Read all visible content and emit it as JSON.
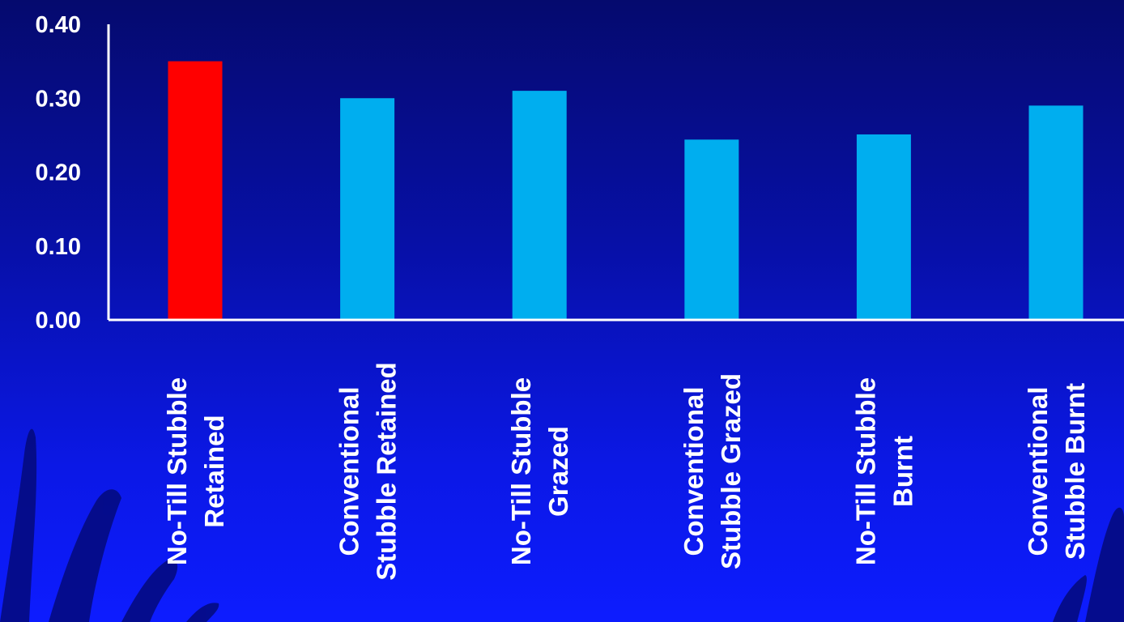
{
  "chart_data": {
    "type": "bar",
    "categories": [
      [
        "No-Till Stubble",
        "Retained"
      ],
      [
        "Conventional",
        "Stubble Retained"
      ],
      [
        "No-Till Stubble",
        "Grazed"
      ],
      [
        "Conventional",
        "Stubble Grazed"
      ],
      [
        "No-Till Stubble",
        "Burnt"
      ],
      [
        "Conventional",
        "Stubble Burnt"
      ]
    ],
    "values": [
      0.35,
      0.3,
      0.31,
      0.244,
      0.251,
      0.29
    ],
    "bar_colors": [
      "#ff0000",
      "#00aeef",
      "#00aeef",
      "#00aeef",
      "#00aeef",
      "#00aeef"
    ],
    "ylim": [
      0,
      0.4
    ],
    "yticks": [
      "0.00",
      "0.10",
      "0.20",
      "0.30",
      "0.40"
    ],
    "grid": false,
    "axis_color": "#ffffff",
    "title": "",
    "xlabel": "",
    "ylabel": ""
  },
  "background": {
    "top_color": "#050a6e",
    "bottom_color": "#0d1cff",
    "decoration": "wheat-silhouette"
  }
}
